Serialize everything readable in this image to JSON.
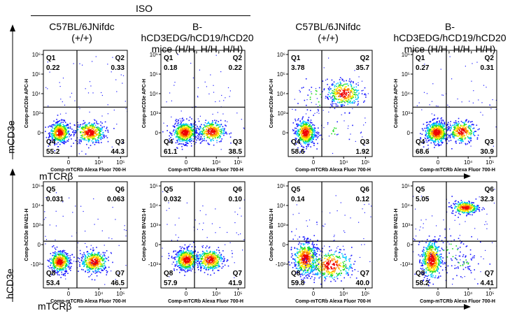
{
  "header": {
    "iso_label": "ISO",
    "columns": [
      {
        "line1": "C57BL/6JNifdc",
        "line2": "(+/+)"
      },
      {
        "line1": "B-hCD3EDG/hCD19/hCD20",
        "line2": "mice (H/H, H/H, H/H)"
      },
      {
        "line1": "C57BL/6JNifdc",
        "line2": "(+/+)"
      },
      {
        "line1": "B-hCD3EDG/hCD19/hCD20",
        "line2": "mice (H/H, H/H, H/H)"
      }
    ]
  },
  "rows": [
    {
      "y_axis_label": "mCD3e",
      "x_axis_label": "mTCRβ"
    },
    {
      "y_axis_label": "hCD3e",
      "x_axis_label": "mTCRβ"
    }
  ],
  "colors": {
    "scale": [
      "#1a1aff",
      "#00c8ff",
      "#22dd22",
      "#ffee00",
      "#ff8800",
      "#ee0000"
    ],
    "gate_line": "#000000"
  },
  "chart_data": [
    {
      "type": "scatter",
      "row": 0,
      "col": 0,
      "xlabel": "Comp-mTCRb Alexa Fluor 700-H",
      "ylabel": "Comp-mCD3e APC-H",
      "xticks": [
        "0",
        "10⁴",
        "10⁵"
      ],
      "yticks": [
        "10⁶",
        "10⁵",
        "10⁴",
        "10³",
        "0"
      ],
      "quadrants": [
        {
          "name": "Q1",
          "value": "0.22"
        },
        {
          "name": "Q2",
          "value": "0.33"
        },
        {
          "name": "Q3",
          "value": "44.3"
        },
        {
          "name": "Q4",
          "value": "55.2"
        }
      ],
      "clusters": [
        {
          "x": 0.19,
          "y": 0.23,
          "sx": 0.06,
          "sy": 0.05,
          "weight": 0.55
        },
        {
          "x": 0.55,
          "y": 0.23,
          "sx": 0.09,
          "sy": 0.05,
          "weight": 0.44
        }
      ]
    },
    {
      "type": "scatter",
      "row": 0,
      "col": 1,
      "xlabel": "Comp-mTCRb Alexa Fluor 700-H",
      "ylabel": "Comp-mCD3e APC-H",
      "xticks": [
        "0",
        "10⁴",
        "10⁵"
      ],
      "yticks": [
        "10⁶",
        "10⁵",
        "10⁴",
        "10³",
        "0"
      ],
      "quadrants": [
        {
          "name": "Q1",
          "value": "0.18"
        },
        {
          "name": "Q2",
          "value": "0.22"
        },
        {
          "name": "Q3",
          "value": "38.5"
        },
        {
          "name": "Q4",
          "value": "61.1"
        }
      ],
      "clusters": [
        {
          "x": 0.28,
          "y": 0.23,
          "sx": 0.07,
          "sy": 0.05,
          "weight": 0.61
        },
        {
          "x": 0.6,
          "y": 0.24,
          "sx": 0.08,
          "sy": 0.05,
          "weight": 0.38
        }
      ]
    },
    {
      "type": "scatter",
      "row": 0,
      "col": 2,
      "xlabel": "Comp-mTCRb Alexa Fluor 700-H",
      "ylabel": "Comp-mCD3e APC-H",
      "xticks": [
        "0",
        "10⁴",
        "10⁵"
      ],
      "yticks": [
        "10⁶",
        "10⁵",
        "10⁴",
        "10³",
        "0"
      ],
      "quadrants": [
        {
          "name": "Q1",
          "value": "3.78"
        },
        {
          "name": "Q2",
          "value": "35.7"
        },
        {
          "name": "Q3",
          "value": "1.92"
        },
        {
          "name": "Q4",
          "value": "58.6"
        }
      ],
      "clusters": [
        {
          "x": 0.2,
          "y": 0.23,
          "sx": 0.06,
          "sy": 0.06,
          "weight": 0.58
        },
        {
          "x": 0.66,
          "y": 0.6,
          "sx": 0.1,
          "sy": 0.06,
          "weight": 0.36
        },
        {
          "x": 0.33,
          "y": 0.55,
          "sx": 0.12,
          "sy": 0.1,
          "weight": 0.04
        },
        {
          "x": 0.5,
          "y": 0.25,
          "sx": 0.15,
          "sy": 0.06,
          "weight": 0.02
        }
      ]
    },
    {
      "type": "scatter",
      "row": 0,
      "col": 3,
      "xlabel": "Comp-mTCRb Alexa Fluor 700-H",
      "ylabel": "Comp-mCD3e APC-H",
      "xticks": [
        "0",
        "10⁴",
        "10⁵"
      ],
      "yticks": [
        "10⁶",
        "10⁵",
        "10⁴",
        "10³",
        "0"
      ],
      "quadrants": [
        {
          "name": "Q1",
          "value": "0.27"
        },
        {
          "name": "Q2",
          "value": "0.31"
        },
        {
          "name": "Q3",
          "value": "30.9"
        },
        {
          "name": "Q4",
          "value": "68.6"
        }
      ],
      "clusters": [
        {
          "x": 0.28,
          "y": 0.23,
          "sx": 0.07,
          "sy": 0.05,
          "weight": 0.69
        },
        {
          "x": 0.58,
          "y": 0.24,
          "sx": 0.08,
          "sy": 0.05,
          "weight": 0.31
        }
      ]
    },
    {
      "type": "scatter",
      "row": 1,
      "col": 0,
      "xlabel": "Comp-mTCRb Alexa Fluor 700-H",
      "ylabel": "Comp-hCD3e BV421-H",
      "xticks": [
        "0",
        "10⁴",
        "10⁵"
      ],
      "yticks": [
        "10⁵",
        "10⁴",
        "10³",
        "0",
        "-10³"
      ],
      "quadrants": [
        {
          "name": "Q5",
          "value": "0.031"
        },
        {
          "name": "Q6",
          "value": "0.063"
        },
        {
          "name": "Q7",
          "value": "46.5"
        },
        {
          "name": "Q8",
          "value": "53.4"
        }
      ],
      "clusters": [
        {
          "x": 0.19,
          "y": 0.25,
          "sx": 0.06,
          "sy": 0.05,
          "weight": 0.53
        },
        {
          "x": 0.6,
          "y": 0.25,
          "sx": 0.08,
          "sy": 0.05,
          "weight": 0.47
        }
      ]
    },
    {
      "type": "scatter",
      "row": 1,
      "col": 1,
      "xlabel": "Comp-mTCRb Alexa Fluor 700-H",
      "ylabel": "Comp-hCD3e BV421-H",
      "xticks": [
        "0",
        "10⁴",
        "10⁵"
      ],
      "yticks": [
        "10⁵",
        "10⁴",
        "10³",
        "0",
        "-10³"
      ],
      "quadrants": [
        {
          "name": "Q5",
          "value": "0.032"
        },
        {
          "name": "Q6",
          "value": "0.10"
        },
        {
          "name": "Q7",
          "value": "41.9"
        },
        {
          "name": "Q8",
          "value": "57.9"
        }
      ],
      "clusters": [
        {
          "x": 0.3,
          "y": 0.27,
          "sx": 0.07,
          "sy": 0.05,
          "weight": 0.58
        },
        {
          "x": 0.58,
          "y": 0.27,
          "sx": 0.08,
          "sy": 0.05,
          "weight": 0.42
        }
      ]
    },
    {
      "type": "scatter",
      "row": 1,
      "col": 2,
      "xlabel": "Comp-mTCRb Alexa Fluor 700-H",
      "ylabel": "Comp-hCD3e BV421-H",
      "xticks": [
        "0",
        "10⁴",
        "10⁵"
      ],
      "yticks": [
        "10⁵",
        "10⁴",
        "10³",
        "0",
        "-10³"
      ],
      "quadrants": [
        {
          "name": "Q5",
          "value": "0.14"
        },
        {
          "name": "Q6",
          "value": "0.12"
        },
        {
          "name": "Q7",
          "value": "40.0"
        },
        {
          "name": "Q8",
          "value": "59.8"
        }
      ],
      "clusters": [
        {
          "x": 0.2,
          "y": 0.28,
          "sx": 0.07,
          "sy": 0.08,
          "weight": 0.6
        },
        {
          "x": 0.5,
          "y": 0.22,
          "sx": 0.13,
          "sy": 0.07,
          "weight": 0.4
        }
      ]
    },
    {
      "type": "scatter",
      "row": 1,
      "col": 3,
      "xlabel": "Comp-mTCRb Alexa Fluor 700-H",
      "ylabel": "Comp-hCD3e BV421-H",
      "xticks": [
        "0",
        "10⁴",
        "10⁵"
      ],
      "yticks": [
        "10⁵",
        "10⁴",
        "10³",
        "0",
        "-10³"
      ],
      "quadrants": [
        {
          "name": "Q5",
          "value": "5.05"
        },
        {
          "name": "Q6",
          "value": "32.3"
        },
        {
          "name": "Q7",
          "value": "4.41"
        },
        {
          "name": "Q8",
          "value": "58.2"
        }
      ],
      "clusters": [
        {
          "x": 0.22,
          "y": 0.27,
          "sx": 0.06,
          "sy": 0.09,
          "weight": 0.58
        },
        {
          "x": 0.62,
          "y": 0.76,
          "sx": 0.08,
          "sy": 0.03,
          "weight": 0.32
        },
        {
          "x": 0.45,
          "y": 0.35,
          "sx": 0.14,
          "sy": 0.12,
          "weight": 0.05
        },
        {
          "x": 0.6,
          "y": 0.25,
          "sx": 0.1,
          "sy": 0.06,
          "weight": 0.05
        }
      ]
    }
  ]
}
